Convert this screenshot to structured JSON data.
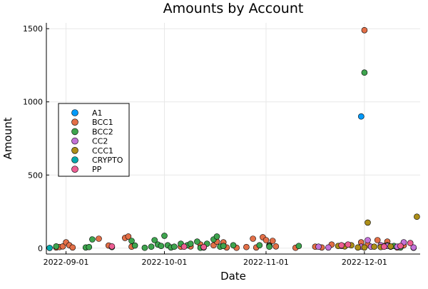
{
  "chart_data": {
    "type": "scatter",
    "title": "Amounts by Account",
    "xlabel": "Date",
    "ylabel": "Amount",
    "x_type": "date",
    "xlim": [
      "2022-08-26",
      "2022-12-18"
    ],
    "ylim": [
      -40,
      1540
    ],
    "x_ticks": [
      "2022-09-01",
      "2022-10-01",
      "2022-11-01",
      "2022-12-01"
    ],
    "x_tick_labels": [
      "2022-09-01",
      "2022-10-01",
      "2022-11-01",
      "2022-12-01"
    ],
    "y_ticks": [
      0,
      500,
      1000,
      1500
    ],
    "y_tick_labels": [
      "0",
      "500",
      "1000",
      "1500"
    ],
    "grid": true,
    "legend_position": "left-middle",
    "series": [
      {
        "name": "A1",
        "color": "#009AFA",
        "points": [
          [
            "2022-11-30",
            900
          ],
          [
            "2022-12-16",
            3
          ]
        ]
      },
      {
        "name": "BCC1",
        "color": "#E36F47",
        "points": [
          [
            "2022-08-29",
            5
          ],
          [
            "2022-08-30",
            8
          ],
          [
            "2022-08-31",
            12
          ],
          [
            "2022-09-01",
            40
          ],
          [
            "2022-09-02",
            20
          ],
          [
            "2022-09-03",
            5
          ],
          [
            "2022-09-11",
            65
          ],
          [
            "2022-09-14",
            18
          ],
          [
            "2022-09-19",
            70
          ],
          [
            "2022-09-20",
            80
          ],
          [
            "2022-09-21",
            10
          ],
          [
            "2022-10-06",
            10
          ],
          [
            "2022-10-09",
            12
          ],
          [
            "2022-10-12",
            25
          ],
          [
            "2022-10-16",
            20
          ],
          [
            "2022-10-17",
            45
          ],
          [
            "2022-10-19",
            40
          ],
          [
            "2022-10-20",
            5
          ],
          [
            "2022-10-23",
            3
          ],
          [
            "2022-10-26",
            8
          ],
          [
            "2022-10-28",
            65
          ],
          [
            "2022-10-29",
            5
          ],
          [
            "2022-10-31",
            75
          ],
          [
            "2022-11-01",
            55
          ],
          [
            "2022-11-02",
            20
          ],
          [
            "2022-11-03",
            50
          ],
          [
            "2022-11-04",
            12
          ],
          [
            "2022-11-10",
            3
          ],
          [
            "2022-11-16",
            10
          ],
          [
            "2022-11-18",
            5
          ],
          [
            "2022-11-21",
            25
          ],
          [
            "2022-11-30",
            40
          ],
          [
            "2022-12-01",
            1490
          ],
          [
            "2022-12-02",
            25
          ],
          [
            "2022-12-05",
            55
          ],
          [
            "2022-12-07",
            15
          ],
          [
            "2022-12-08",
            45
          ],
          [
            "2022-12-09",
            10
          ],
          [
            "2022-12-11",
            5
          ],
          [
            "2022-12-13",
            20
          ]
        ]
      },
      {
        "name": "BCC2",
        "color": "#3EA44E",
        "points": [
          [
            "2022-08-29",
            12
          ],
          [
            "2022-09-07",
            5
          ],
          [
            "2022-09-08",
            8
          ],
          [
            "2022-09-09",
            60
          ],
          [
            "2022-09-15",
            8
          ],
          [
            "2022-09-21",
            50
          ],
          [
            "2022-09-22",
            18
          ],
          [
            "2022-09-25",
            3
          ],
          [
            "2022-09-27",
            10
          ],
          [
            "2022-09-28",
            55
          ],
          [
            "2022-09-29",
            25
          ],
          [
            "2022-09-30",
            15
          ],
          [
            "2022-10-01",
            85
          ],
          [
            "2022-10-02",
            20
          ],
          [
            "2022-10-03",
            5
          ],
          [
            "2022-10-04",
            10
          ],
          [
            "2022-10-06",
            30
          ],
          [
            "2022-10-08",
            20
          ],
          [
            "2022-10-09",
            30
          ],
          [
            "2022-10-11",
            45
          ],
          [
            "2022-10-12",
            3
          ],
          [
            "2022-10-13",
            5
          ],
          [
            "2022-10-14",
            30
          ],
          [
            "2022-10-16",
            60
          ],
          [
            "2022-10-17",
            80
          ],
          [
            "2022-10-18",
            10
          ],
          [
            "2022-10-19",
            15
          ],
          [
            "2022-10-22",
            20
          ],
          [
            "2022-10-30",
            20
          ],
          [
            "2022-11-02",
            15
          ],
          [
            "2022-11-02",
            10
          ],
          [
            "2022-11-11",
            15
          ],
          [
            "2022-12-01",
            1200
          ],
          [
            "2022-12-08",
            20
          ],
          [
            "2022-12-10",
            15
          ],
          [
            "2022-12-12",
            5
          ]
        ]
      },
      {
        "name": "CC2",
        "color": "#C372D8",
        "points": [
          [
            "2022-11-17",
            10
          ],
          [
            "2022-11-20",
            5
          ],
          [
            "2022-11-24",
            15
          ],
          [
            "2022-11-30",
            10
          ],
          [
            "2022-12-02",
            55
          ],
          [
            "2022-12-03",
            10
          ],
          [
            "2022-12-06",
            20
          ],
          [
            "2022-12-08",
            15
          ],
          [
            "2022-12-11",
            10
          ],
          [
            "2022-12-13",
            40
          ],
          [
            "2022-12-16",
            5
          ]
        ]
      },
      {
        "name": "CCC1",
        "color": "#AC8E18",
        "points": [
          [
            "2022-11-23",
            15
          ],
          [
            "2022-11-25",
            12
          ],
          [
            "2022-11-27",
            20
          ],
          [
            "2022-11-29",
            5
          ],
          [
            "2022-12-01",
            5
          ],
          [
            "2022-12-02",
            175
          ],
          [
            "2022-12-04",
            10
          ],
          [
            "2022-12-06",
            8
          ],
          [
            "2022-12-09",
            12
          ],
          [
            "2022-12-17",
            215
          ]
        ]
      },
      {
        "name": "CRYPTO",
        "color": "#00A9AD",
        "points": [
          [
            "2022-08-27",
            2
          ]
        ]
      },
      {
        "name": "PP",
        "color": "#ED5E93",
        "points": [
          [
            "2022-09-15",
            12
          ],
          [
            "2022-10-07",
            10
          ],
          [
            "2022-10-13",
            8
          ],
          [
            "2022-11-24",
            20
          ],
          [
            "2022-11-26",
            25
          ],
          [
            "2022-12-07",
            10
          ],
          [
            "2022-12-12",
            15
          ],
          [
            "2022-12-15",
            35
          ]
        ]
      }
    ]
  }
}
